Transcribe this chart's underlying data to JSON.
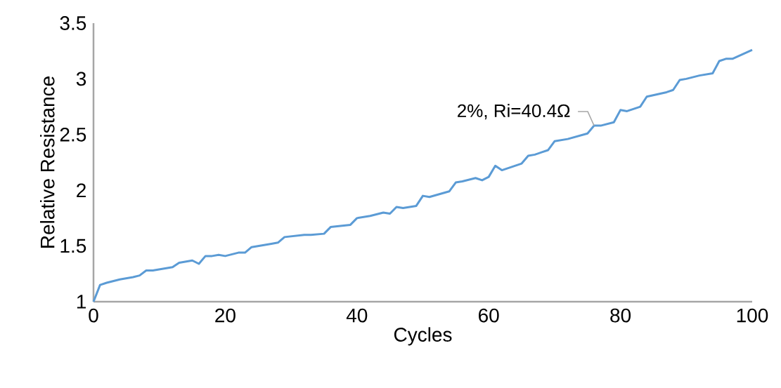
{
  "chart_data": {
    "type": "line",
    "xlabel": "Cycles",
    "ylabel": "Relative Resistance",
    "x": [
      0,
      1,
      2,
      4,
      6,
      7,
      8,
      9,
      12,
      13,
      14,
      15,
      16,
      17,
      18,
      19,
      20,
      22,
      23,
      24,
      27,
      28,
      29,
      32,
      33,
      35,
      36,
      39,
      40,
      42,
      44,
      45,
      46,
      47,
      49,
      50,
      51,
      54,
      55,
      56,
      58,
      59,
      60,
      61,
      62,
      65,
      66,
      67,
      68,
      69,
      70,
      72,
      75,
      76,
      77,
      79,
      80,
      81,
      83,
      84,
      87,
      88,
      89,
      90,
      92,
      94,
      95,
      96,
      97,
      100
    ],
    "values": [
      1.0,
      1.15,
      1.17,
      1.2,
      1.22,
      1.235,
      1.28,
      1.28,
      1.31,
      1.35,
      1.36,
      1.37,
      1.34,
      1.41,
      1.41,
      1.42,
      1.41,
      1.44,
      1.44,
      1.49,
      1.52,
      1.53,
      1.58,
      1.6,
      1.6,
      1.61,
      1.67,
      1.69,
      1.75,
      1.77,
      1.8,
      1.79,
      1.85,
      1.84,
      1.86,
      1.95,
      1.94,
      1.99,
      2.07,
      2.08,
      2.11,
      2.09,
      2.12,
      2.22,
      2.18,
      2.24,
      2.31,
      2.32,
      2.34,
      2.36,
      2.44,
      2.46,
      2.51,
      2.58,
      2.58,
      2.61,
      2.72,
      2.71,
      2.75,
      2.84,
      2.88,
      2.9,
      2.99,
      3.0,
      3.03,
      3.05,
      3.16,
      3.18,
      3.18,
      3.26
    ],
    "color": "#5b9bd5",
    "xlim": [
      0,
      100
    ],
    "ylim": [
      1,
      3.5
    ],
    "xticks": [
      0,
      20,
      40,
      60,
      80,
      100
    ],
    "yticks": [
      1,
      1.5,
      2,
      2.5,
      3,
      3.5
    ],
    "annotations": [
      {
        "text": "2%, Ri=40.4Ω",
        "x": 76,
        "y": 2.58
      }
    ]
  }
}
